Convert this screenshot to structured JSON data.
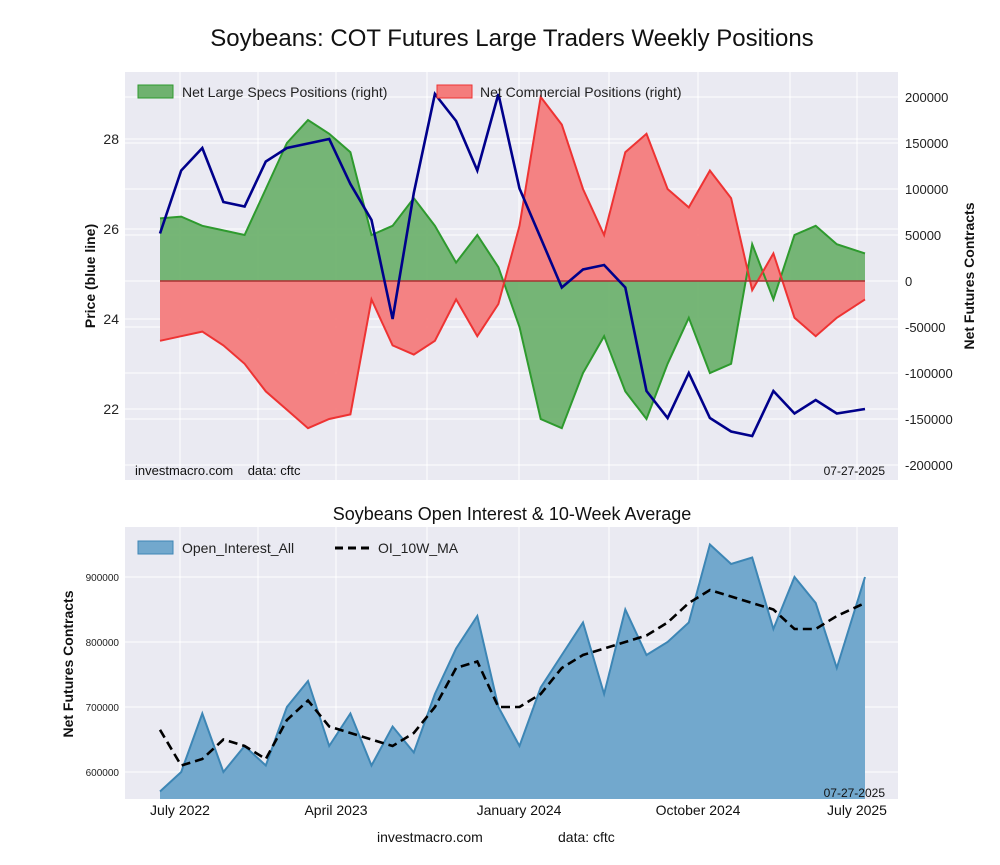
{
  "title": "Soybeans: COT Futures Large Traders Weekly Positions",
  "colors": {
    "background": "#eaeaf2",
    "grid": "#ffffff",
    "price_line": "#00008b",
    "specs_fill": "#6fb26f",
    "specs_line": "#2e9a2e",
    "comm_fill": "#f47c7c",
    "comm_line": "#ee3333",
    "oi_fill": "#72a8cd",
    "oi_line": "#3d86b5",
    "ma_line": "#000000"
  },
  "top_chart": {
    "legend": [
      "Net Large Specs Positions (right)",
      "Net Commercial Positions (right)"
    ],
    "y_left_label": "Price (blue line)",
    "y_right_label": "Net Futures Contracts",
    "y_left_ticks": [
      "22",
      "24",
      "26",
      "28"
    ],
    "y_right_ticks": [
      "200000",
      "150000",
      "100000",
      "50000",
      "0",
      "-50000",
      "-100000",
      "-150000",
      "-200000"
    ],
    "footer_left": "investmacro.com    data: cftc",
    "footer_right": "07-27-2025"
  },
  "bottom_chart": {
    "title": "Soybeans Open Interest & 10-Week Average",
    "legend": [
      "Open_Interest_All",
      "OI_10W_MA"
    ],
    "y_label": "Net Futures Contracts",
    "y_ticks": [
      "600000",
      "700000",
      "800000",
      "900000"
    ],
    "x_ticks": [
      "July 2022",
      "April 2023",
      "January 2024",
      "October 2024",
      "July 2025"
    ],
    "date_stamp": "07-27-2025"
  },
  "footer": {
    "site": "investmacro.com",
    "source": "data: cftc"
  },
  "chart_data": [
    {
      "type": "area",
      "title": "Soybeans: COT Futures Large Traders Weekly Positions",
      "x_range": [
        "2022-07",
        "2025-07"
      ],
      "y_left_range": [
        20.8,
        29.2
      ],
      "y_right_range": [
        -200000,
        210000
      ],
      "series": [
        {
          "name": "Net Large Specs Positions (right)",
          "axis": "right",
          "x": [
            0,
            0.03,
            0.06,
            0.09,
            0.12,
            0.15,
            0.18,
            0.21,
            0.24,
            0.27,
            0.3,
            0.33,
            0.36,
            0.39,
            0.42,
            0.45,
            0.48,
            0.51,
            0.54,
            0.57,
            0.6,
            0.63,
            0.66,
            0.69,
            0.72,
            0.75,
            0.78,
            0.81,
            0.84,
            0.87,
            0.9,
            0.93,
            0.96,
            1.0
          ],
          "values": [
            68000,
            70000,
            60000,
            55000,
            50000,
            100000,
            150000,
            175000,
            160000,
            140000,
            50000,
            60000,
            90000,
            60000,
            20000,
            50000,
            15000,
            -50000,
            -150000,
            -160000,
            -100000,
            -60000,
            -120000,
            -150000,
            -90000,
            -40000,
            -100000,
            -90000,
            40000,
            -20000,
            50000,
            60000,
            40000,
            30000
          ]
        },
        {
          "name": "Net Commercial Positions (right)",
          "axis": "right",
          "x": [
            0,
            0.03,
            0.06,
            0.09,
            0.12,
            0.15,
            0.18,
            0.21,
            0.24,
            0.27,
            0.3,
            0.33,
            0.36,
            0.39,
            0.42,
            0.45,
            0.48,
            0.51,
            0.54,
            0.57,
            0.6,
            0.63,
            0.66,
            0.69,
            0.72,
            0.75,
            0.78,
            0.81,
            0.84,
            0.87,
            0.9,
            0.93,
            0.96,
            1.0
          ],
          "values": [
            -65000,
            -60000,
            -55000,
            -70000,
            -90000,
            -120000,
            -140000,
            -160000,
            -150000,
            -145000,
            -20000,
            -70000,
            -80000,
            -65000,
            -20000,
            -60000,
            -25000,
            60000,
            200000,
            170000,
            100000,
            50000,
            140000,
            160000,
            100000,
            80000,
            120000,
            90000,
            -10000,
            30000,
            -40000,
            -60000,
            -40000,
            -20000
          ]
        },
        {
          "name": "Price (blue line)",
          "axis": "left",
          "x": [
            0,
            0.03,
            0.06,
            0.09,
            0.12,
            0.15,
            0.18,
            0.21,
            0.24,
            0.27,
            0.3,
            0.33,
            0.36,
            0.39,
            0.42,
            0.45,
            0.48,
            0.51,
            0.54,
            0.57,
            0.6,
            0.63,
            0.66,
            0.69,
            0.72,
            0.75,
            0.78,
            0.81,
            0.84,
            0.87,
            0.9,
            0.93,
            0.96,
            1.0
          ],
          "values": [
            25.9,
            27.3,
            27.8,
            26.6,
            26.5,
            27.5,
            27.8,
            27.9,
            28.0,
            27.0,
            26.2,
            24.0,
            26.8,
            29.0,
            28.4,
            27.3,
            29.0,
            26.9,
            25.8,
            24.7,
            25.1,
            25.2,
            24.7,
            22.4,
            21.8,
            22.8,
            21.8,
            21.5,
            21.4,
            22.4,
            21.9,
            22.2,
            21.9,
            22.0
          ]
        }
      ]
    },
    {
      "type": "area",
      "title": "Soybeans Open Interest & 10-Week Average",
      "x_range": [
        "2022-07",
        "2025-07"
      ],
      "y_range": [
        555000,
        965000
      ],
      "series": [
        {
          "name": "Open_Interest_All",
          "x": [
            0,
            0.03,
            0.06,
            0.09,
            0.12,
            0.15,
            0.18,
            0.21,
            0.24,
            0.27,
            0.3,
            0.33,
            0.36,
            0.39,
            0.42,
            0.45,
            0.48,
            0.51,
            0.54,
            0.57,
            0.6,
            0.63,
            0.66,
            0.69,
            0.72,
            0.75,
            0.78,
            0.81,
            0.84,
            0.87,
            0.9,
            0.93,
            0.96,
            1.0
          ],
          "values": [
            570000,
            600000,
            690000,
            600000,
            640000,
            610000,
            700000,
            740000,
            640000,
            690000,
            610000,
            670000,
            630000,
            720000,
            790000,
            840000,
            700000,
            640000,
            730000,
            780000,
            830000,
            720000,
            850000,
            780000,
            800000,
            830000,
            950000,
            920000,
            930000,
            820000,
            900000,
            860000,
            760000,
            900000
          ]
        },
        {
          "name": "OI_10W_MA",
          "x": [
            0,
            0.03,
            0.06,
            0.09,
            0.12,
            0.15,
            0.18,
            0.21,
            0.24,
            0.27,
            0.3,
            0.33,
            0.36,
            0.39,
            0.42,
            0.45,
            0.48,
            0.51,
            0.54,
            0.57,
            0.6,
            0.63,
            0.66,
            0.69,
            0.72,
            0.75,
            0.78,
            0.81,
            0.84,
            0.87,
            0.9,
            0.93,
            0.96,
            1.0
          ],
          "values": [
            665000,
            610000,
            620000,
            650000,
            640000,
            620000,
            680000,
            710000,
            670000,
            660000,
            650000,
            640000,
            660000,
            700000,
            760000,
            770000,
            700000,
            700000,
            720000,
            760000,
            780000,
            790000,
            800000,
            810000,
            830000,
            860000,
            880000,
            870000,
            860000,
            850000,
            820000,
            820000,
            840000,
            860000
          ]
        }
      ]
    }
  ]
}
